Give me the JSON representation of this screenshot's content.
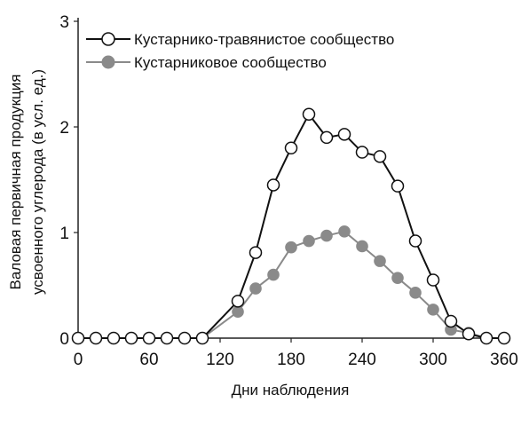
{
  "chart_data": {
    "type": "line",
    "title": "",
    "xlabel": "Дни наблюдения",
    "ylabel_line1": "Валовая первичная продукция",
    "ylabel_line2": "усвоенного углерода (в усл. ед.)",
    "xlim": [
      0,
      360
    ],
    "ylim": [
      0,
      3
    ],
    "xticks": [
      0,
      60,
      120,
      180,
      240,
      300,
      360
    ],
    "yticks": [
      0,
      1,
      2,
      3
    ],
    "grid": false,
    "legend_position": "top-left",
    "series": [
      {
        "name": "Кустарнико-травянистое сообщество",
        "marker": "open-circle",
        "line_color": "#111111",
        "x": [
          0,
          15,
          30,
          45,
          60,
          75,
          90,
          105,
          135,
          150,
          165,
          180,
          195,
          210,
          225,
          240,
          255,
          270,
          285,
          300,
          315,
          330,
          345,
          360
        ],
        "y": [
          0,
          0,
          0,
          0,
          0,
          0,
          0,
          0,
          0.35,
          0.81,
          1.45,
          1.8,
          2.12,
          1.9,
          1.93,
          1.76,
          1.72,
          1.44,
          0.92,
          0.55,
          0.16,
          0.04,
          0,
          0
        ]
      },
      {
        "name": "Кустарниковое сообщество",
        "marker": "filled-circle",
        "line_color": "#8a8a8a",
        "x": [
          0,
          15,
          30,
          45,
          60,
          75,
          90,
          105,
          135,
          150,
          165,
          180,
          195,
          210,
          225,
          240,
          255,
          270,
          285,
          300,
          315,
          330,
          345,
          360
        ],
        "y": [
          0,
          0,
          0,
          0,
          0,
          0,
          0,
          0,
          0.25,
          0.47,
          0.6,
          0.86,
          0.92,
          0.97,
          1.01,
          0.87,
          0.73,
          0.57,
          0.43,
          0.27,
          0.08,
          0.05,
          0,
          0
        ]
      }
    ]
  }
}
